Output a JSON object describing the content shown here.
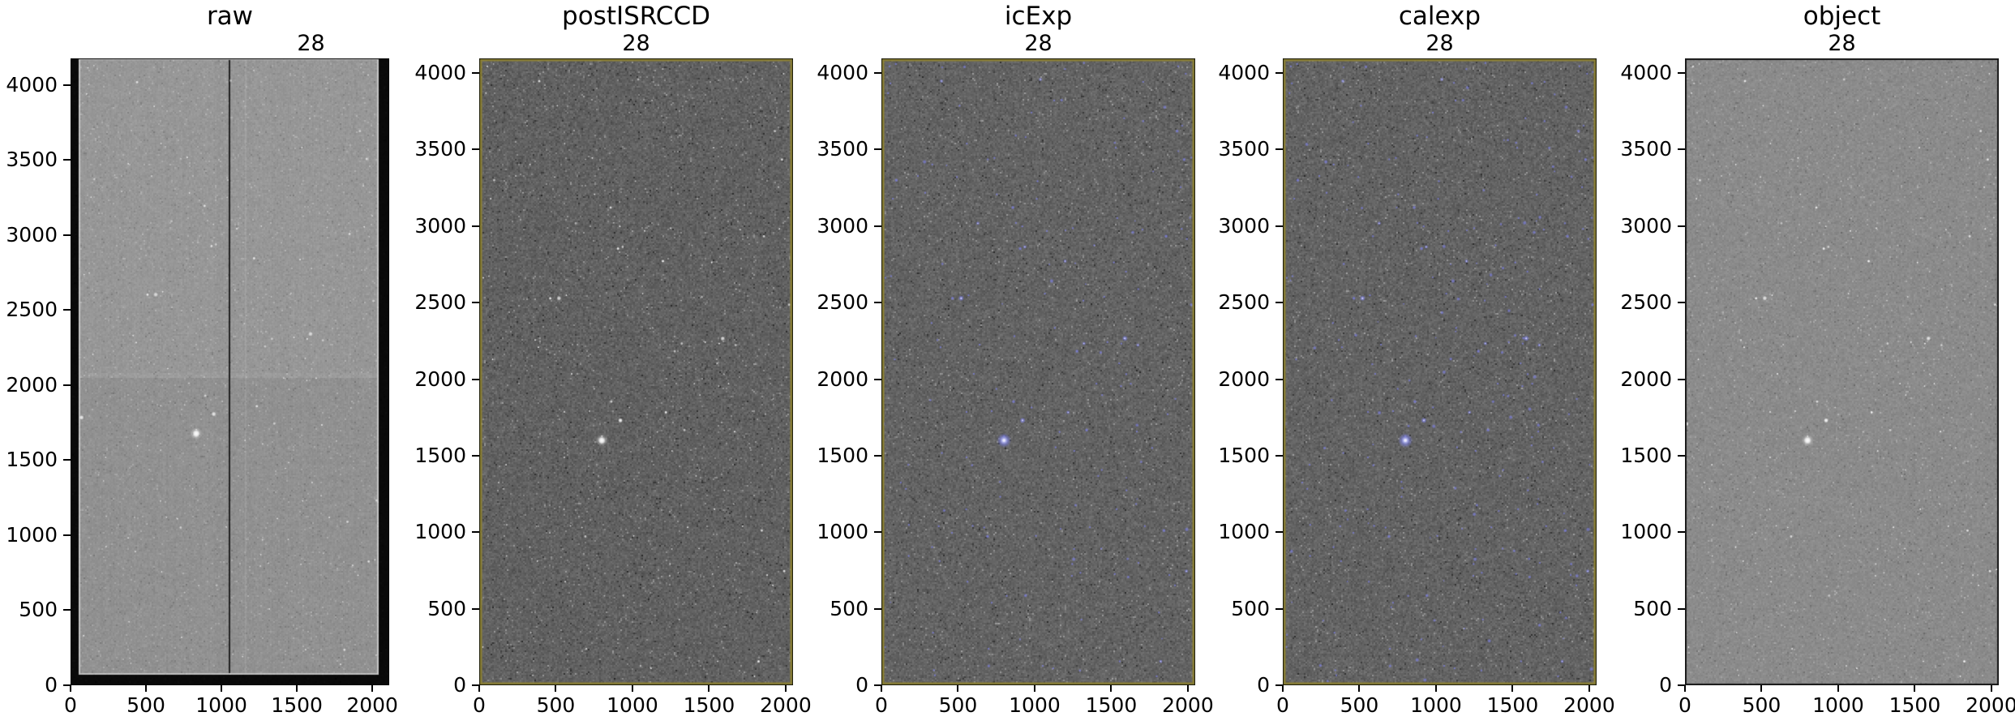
{
  "figure_title": "",
  "colors": {
    "background": "#ffffff",
    "text": "#000000",
    "olive_border": "#8a7f35",
    "dark_border": "#161616",
    "blue_source": "#7d80de",
    "star_white": "#ffffff"
  },
  "chart_data": {
    "type": "heatmap",
    "layout": "five astronomical image panels side by side, matplotlib style, shared tick scheme",
    "bright_star_data_xy": [
      800,
      1600
    ],
    "panels": [
      {
        "title": "raw",
        "subtitle": "28",
        "xlim": [
          0,
          2112
        ],
        "ylim": [
          0,
          4176
        ],
        "x_ticks": [
          0,
          500,
          1000,
          1500,
          2000
        ],
        "y_ticks": [
          0,
          500,
          1000,
          1500,
          2000,
          2500,
          3000,
          3500,
          4000
        ],
        "description": "Raw CCD frame: light-gray noise, black overscan bars on left/right/bottom edges with thin white gutters, dark vertical mid-chip gap, faint amplifier brightness step near y=2050, scattered white stars, bright star near (850,1640)",
        "style": {
          "border": "black",
          "overscan": true,
          "base": 148,
          "sigma": 8.5,
          "sources": "white",
          "extra_blue": 0,
          "star_alpha": 0.85
        }
      },
      {
        "title": "postISRCCD",
        "subtitle": "28",
        "xlim": [
          0,
          2048
        ],
        "ylim": [
          0,
          4096
        ],
        "x_ticks": [
          0,
          500,
          1000,
          1500,
          2000
        ],
        "y_ticks": [
          0,
          500,
          1000,
          1500,
          2000,
          2500,
          3000,
          3500,
          4000
        ],
        "description": "ISR-corrected frame: dark high-contrast gray noise, khaki/olive frame edge, white stars, bright star near (800,1600)",
        "style": {
          "border": "olive",
          "overscan": false,
          "base": 97,
          "sigma": 17,
          "sources": "white",
          "extra_blue": 0,
          "star_alpha": 1.0
        }
      },
      {
        "title": "icExp",
        "subtitle": "28",
        "xlim": [
          0,
          2048
        ],
        "ylim": [
          0,
          4096
        ],
        "x_ticks": [
          0,
          500,
          1000,
          1500,
          2000
        ],
        "y_ticks": [
          0,
          500,
          1000,
          1500,
          2000,
          2500,
          3000,
          3500,
          4000
        ],
        "description": "Characterized exposure: dark gray noise with detected sources overlaid in blue-violet, khaki/olive frame edge, bright blue-haloed star near (800,1600)",
        "style": {
          "border": "olive",
          "overscan": false,
          "base": 99,
          "sigma": 17,
          "sources": "blue",
          "extra_blue": 45,
          "star_alpha": 0.9
        }
      },
      {
        "title": "calexp",
        "subtitle": "28",
        "xlim": [
          0,
          2048
        ],
        "ylim": [
          0,
          4096
        ],
        "x_ticks": [
          0,
          500,
          1000,
          1500,
          2000
        ],
        "y_ticks": [
          0,
          500,
          1000,
          1500,
          2000,
          2500,
          3000,
          3500,
          4000
        ],
        "description": "Calibrated exposure: dark gray noise with many detected sources overlaid in blue-violet, khaki/olive frame edge, bright blue-haloed star near (800,1600)",
        "style": {
          "border": "olive",
          "overscan": false,
          "base": 99,
          "sigma": 17,
          "sources": "blue",
          "extra_blue": 130,
          "star_alpha": 0.9
        }
      },
      {
        "title": "object",
        "subtitle": "28",
        "xlim": [
          0,
          2048
        ],
        "ylim": [
          0,
          4096
        ],
        "x_ticks": [
          0,
          500,
          1000,
          1500,
          2000
        ],
        "y_ticks": [
          0,
          500,
          1000,
          1500,
          2000,
          2500,
          3000,
          3500,
          4000
        ],
        "description": "Background-subtracted object image: smoother light-gray noise, thin dark frame edge, white stars, bright star near (800,1600)",
        "style": {
          "border": "dark",
          "overscan": false,
          "base": 139,
          "sigma": 10,
          "sources": "white",
          "extra_blue": 0,
          "star_alpha": 1.0
        }
      }
    ]
  }
}
